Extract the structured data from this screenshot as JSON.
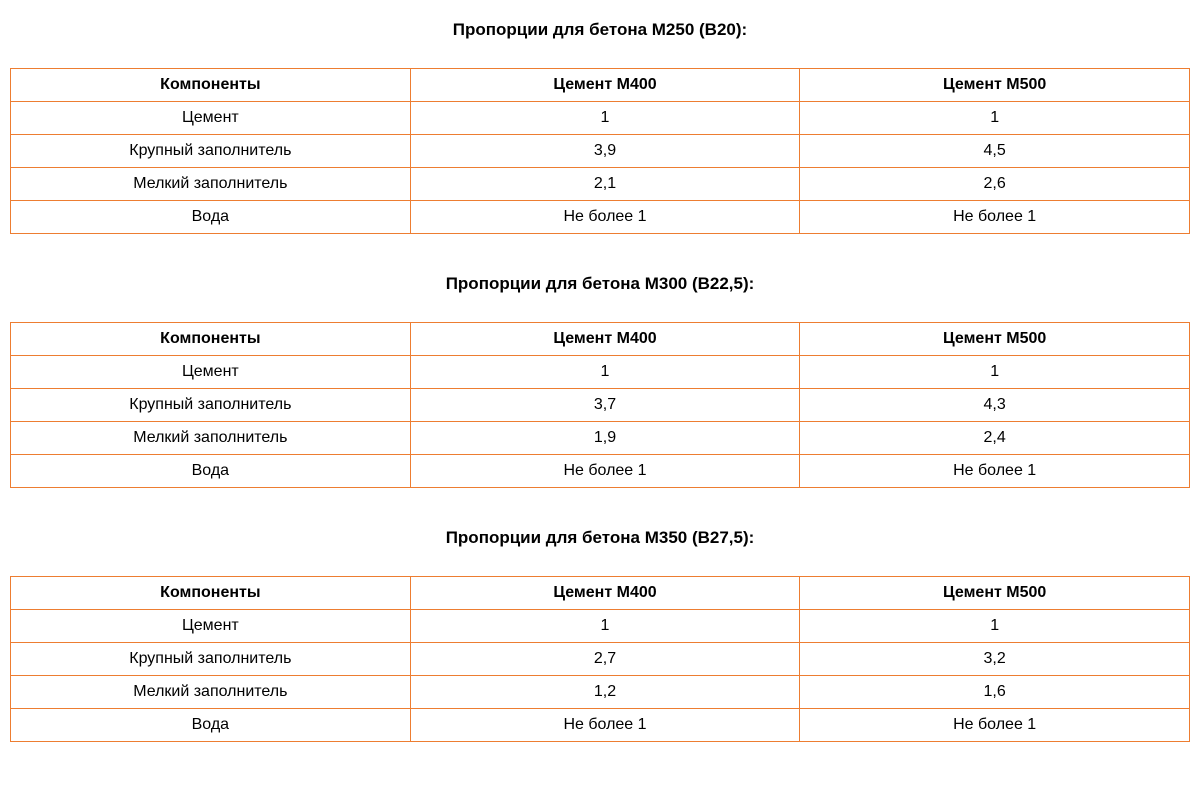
{
  "style": {
    "border_color": "#ed7d31",
    "background_color": "#ffffff",
    "text_color": "#000000",
    "title_fontsize": 17,
    "cell_fontsize": 16,
    "font_family": "Arial"
  },
  "sections": [
    {
      "title": "Пропорции для бетона М250 (В20):",
      "columns": [
        "Компоненты",
        "Цемент М400",
        "Цемент М500"
      ],
      "rows": [
        [
          "Цемент",
          "1",
          "1"
        ],
        [
          "Крупный заполнитель",
          "3,9",
          "4,5"
        ],
        [
          "Мелкий заполнитель",
          "2,1",
          "2,6"
        ],
        [
          "Вода",
          "Не более 1",
          "Не более 1"
        ]
      ]
    },
    {
      "title": "Пропорции для бетона М300 (В22,5):",
      "columns": [
        "Компоненты",
        "Цемент М400",
        "Цемент М500"
      ],
      "rows": [
        [
          "Цемент",
          "1",
          "1"
        ],
        [
          "Крупный заполнитель",
          "3,7",
          "4,3"
        ],
        [
          "Мелкий заполнитель",
          "1,9",
          "2,4"
        ],
        [
          "Вода",
          "Не более 1",
          "Не более 1"
        ]
      ]
    },
    {
      "title": "Пропорции для бетона М350 (В27,5):",
      "columns": [
        "Компоненты",
        "Цемент М400",
        "Цемент М500"
      ],
      "rows": [
        [
          "Цемент",
          "1",
          "1"
        ],
        [
          "Крупный заполнитель",
          "2,7",
          "3,2"
        ],
        [
          "Мелкий заполнитель",
          "1,2",
          "1,6"
        ],
        [
          "Вода",
          "Не более 1",
          "Не более 1"
        ]
      ]
    }
  ]
}
